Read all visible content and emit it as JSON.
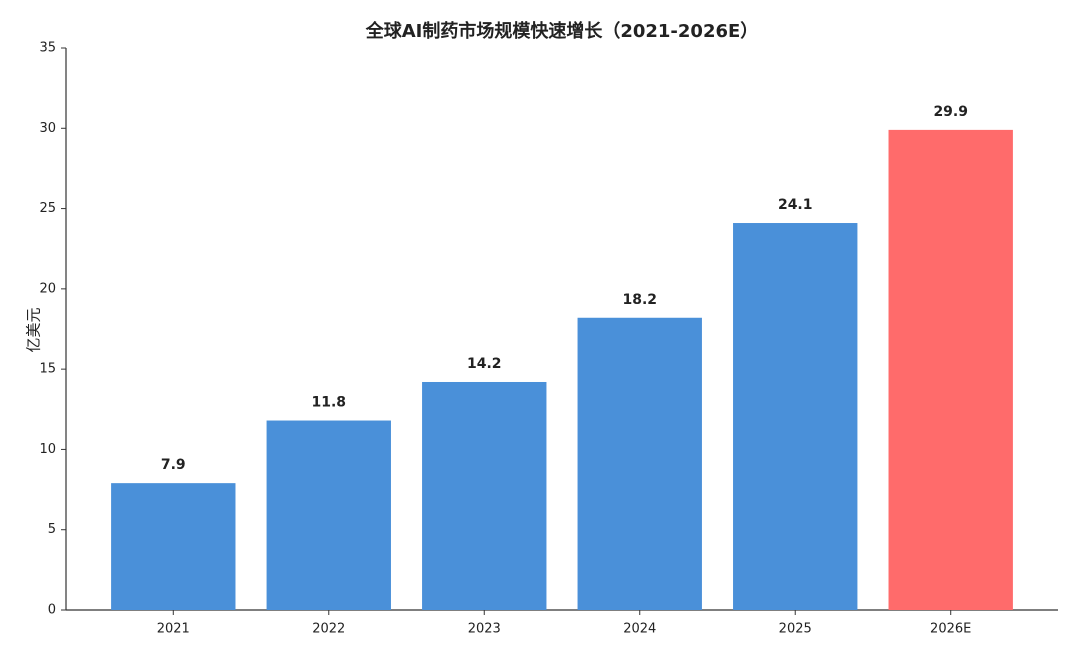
{
  "chart_data": {
    "type": "bar",
    "title": "全球AI制药市场规模快速增长（2021-2026E）",
    "y_label": "亿美元",
    "categories": [
      "2021",
      "2022",
      "2023",
      "2024",
      "2025",
      "2026E"
    ],
    "values": [
      7.9,
      11.8,
      14.2,
      18.2,
      24.1,
      29.9
    ],
    "colors": [
      "#4a90d9",
      "#4a90d9",
      "#4a90d9",
      "#4a90d9",
      "#4a90d9",
      "#ff6b6b"
    ],
    "ylim": [
      0,
      35
    ],
    "yticks": [
      0,
      5,
      10,
      15,
      20,
      25,
      30,
      35
    ],
    "grid": false
  }
}
